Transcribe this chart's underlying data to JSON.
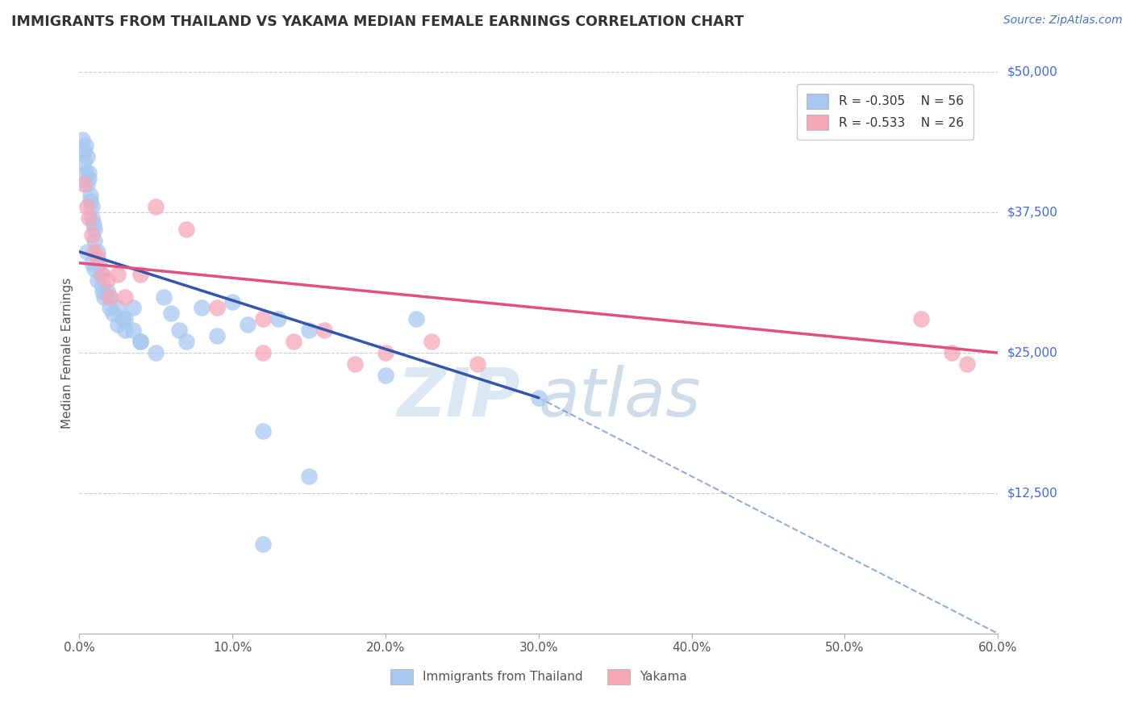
{
  "title": "IMMIGRANTS FROM THAILAND VS YAKAMA MEDIAN FEMALE EARNINGS CORRELATION CHART",
  "source": "Source: ZipAtlas.com",
  "ylabel": "Median Female Earnings",
  "xlim": [
    0,
    0.6
  ],
  "ylim": [
    0,
    50000
  ],
  "xticks": [
    0.0,
    0.1,
    0.2,
    0.3,
    0.4,
    0.5,
    0.6
  ],
  "xticklabels": [
    "0.0%",
    "10.0%",
    "20.0%",
    "30.0%",
    "40.0%",
    "50.0%",
    "60.0%"
  ],
  "ytick_values": [
    0,
    12500,
    25000,
    37500,
    50000
  ],
  "ytick_labels": [
    "",
    "$12,500",
    "$25,000",
    "$37,500",
    "$50,000"
  ],
  "blue_color": "#a8c8f0",
  "pink_color": "#f5a8b8",
  "blue_line_color": "#3355aa",
  "pink_line_color": "#e05080",
  "dash_line_color": "#7799cc",
  "legend_blue_label": "R = -0.305    N = 56",
  "legend_pink_label": "R = -0.533    N = 26",
  "legend_bottom_blue": "Immigrants from Thailand",
  "legend_bottom_pink": "Yakama",
  "watermark_zip": "ZIP",
  "watermark_atlas": "atlas",
  "background_color": "#ffffff",
  "grid_color": "#cccccc",
  "title_color": "#333333",
  "axis_label_color": "#555555",
  "ytick_color": "#4169e1",
  "blue_line_x0": 0.0,
  "blue_line_y0": 34000,
  "blue_line_x1": 0.3,
  "blue_line_y1": 21000,
  "dash_line_x0": 0.3,
  "dash_line_y0": 21000,
  "dash_line_x1": 0.6,
  "dash_line_y1": 0,
  "pink_line_x0": 0.0,
  "pink_line_y0": 33000,
  "pink_line_x1": 0.6,
  "pink_line_y1": 25000,
  "blue_x": [
    0.002,
    0.003,
    0.003,
    0.004,
    0.004,
    0.005,
    0.005,
    0.006,
    0.006,
    0.007,
    0.007,
    0.008,
    0.008,
    0.009,
    0.01,
    0.01,
    0.012,
    0.013,
    0.014,
    0.015,
    0.016,
    0.018,
    0.02,
    0.022,
    0.025,
    0.028,
    0.03,
    0.035,
    0.04,
    0.05,
    0.055,
    0.06,
    0.065,
    0.07,
    0.08,
    0.09,
    0.1,
    0.11,
    0.13,
    0.15,
    0.005,
    0.008,
    0.01,
    0.012,
    0.015,
    0.02,
    0.025,
    0.03,
    0.035,
    0.04,
    0.22,
    0.12,
    0.2,
    0.3,
    0.12,
    0.15
  ],
  "blue_y": [
    44000,
    43000,
    42000,
    43500,
    41000,
    42500,
    40000,
    41000,
    40500,
    39000,
    38500,
    38000,
    37000,
    36500,
    36000,
    35000,
    34000,
    33000,
    32000,
    31000,
    30000,
    30500,
    29000,
    28500,
    27500,
    28000,
    27000,
    29000,
    26000,
    25000,
    30000,
    28500,
    27000,
    26000,
    29000,
    26500,
    29500,
    27500,
    28000,
    27000,
    34000,
    33000,
    32500,
    31500,
    30500,
    30000,
    29000,
    28000,
    27000,
    26000,
    28000,
    18000,
    23000,
    21000,
    8000,
    14000
  ],
  "pink_x": [
    0.003,
    0.005,
    0.006,
    0.008,
    0.01,
    0.012,
    0.015,
    0.018,
    0.02,
    0.025,
    0.03,
    0.04,
    0.05,
    0.07,
    0.09,
    0.12,
    0.16,
    0.2,
    0.23,
    0.26,
    0.12,
    0.14,
    0.18,
    0.55,
    0.57,
    0.58
  ],
  "pink_y": [
    40000,
    38000,
    37000,
    35500,
    34000,
    33500,
    32000,
    31500,
    30000,
    32000,
    30000,
    32000,
    38000,
    36000,
    29000,
    28000,
    27000,
    25000,
    26000,
    24000,
    25000,
    26000,
    24000,
    28000,
    25000,
    24000
  ]
}
